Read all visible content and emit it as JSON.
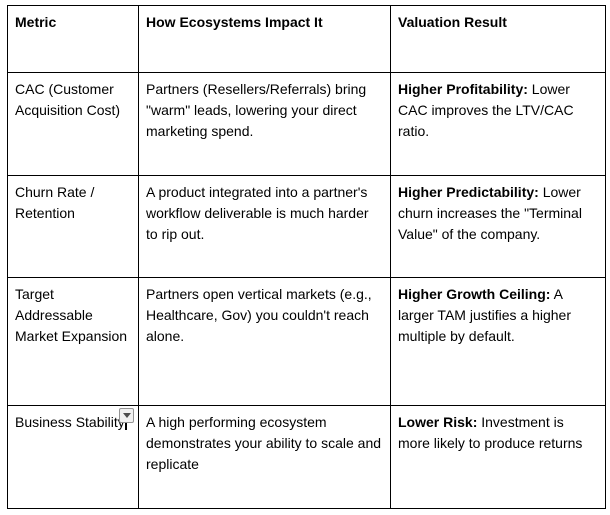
{
  "colors": {
    "table_border": "#000000",
    "text": "#000000",
    "dropdown_button_bg": "#f1f1f1",
    "dropdown_button_border": "#949494",
    "dropdown_arrow": "#4d4d4d"
  },
  "icons": {
    "cell_dropdown": "chevron-down-icon"
  },
  "table": {
    "columns": [
      "Metric",
      "How Ecosystems Impact It",
      "Valuation Result"
    ],
    "rows": [
      {
        "metric": "CAC (Customer Acquisition Cost)",
        "impact": "Partners (Resellers/Referrals) bring \"warm\" leads, lowering your direct marketing spend.",
        "valuation_lead": "Higher Profitability:",
        "valuation_rest": " Lower CAC improves the LTV/CAC ratio."
      },
      {
        "metric": "Churn Rate / Retention",
        "impact": "A product integrated into a partner's workflow deliverable is much harder to rip out.",
        "valuation_lead": "Higher Predictability:",
        "valuation_rest": " Lower churn increases the \"Terminal Value\" of the company."
      },
      {
        "metric": "Target Addressable Market Expansion",
        "impact": "Partners open vertical markets (e.g., Healthcare, Gov) you couldn't reach alone.",
        "valuation_lead": "Higher Growth Ceiling:",
        "valuation_rest": " A larger TAM justifies a higher multiple by default."
      },
      {
        "metric": "Business Stability",
        "impact": "A high performing ecosystem demonstrates your ability to scale and replicate",
        "valuation_lead": "Lower Risk:",
        "valuation_rest": " Investment is more likely to produce returns"
      }
    ]
  }
}
